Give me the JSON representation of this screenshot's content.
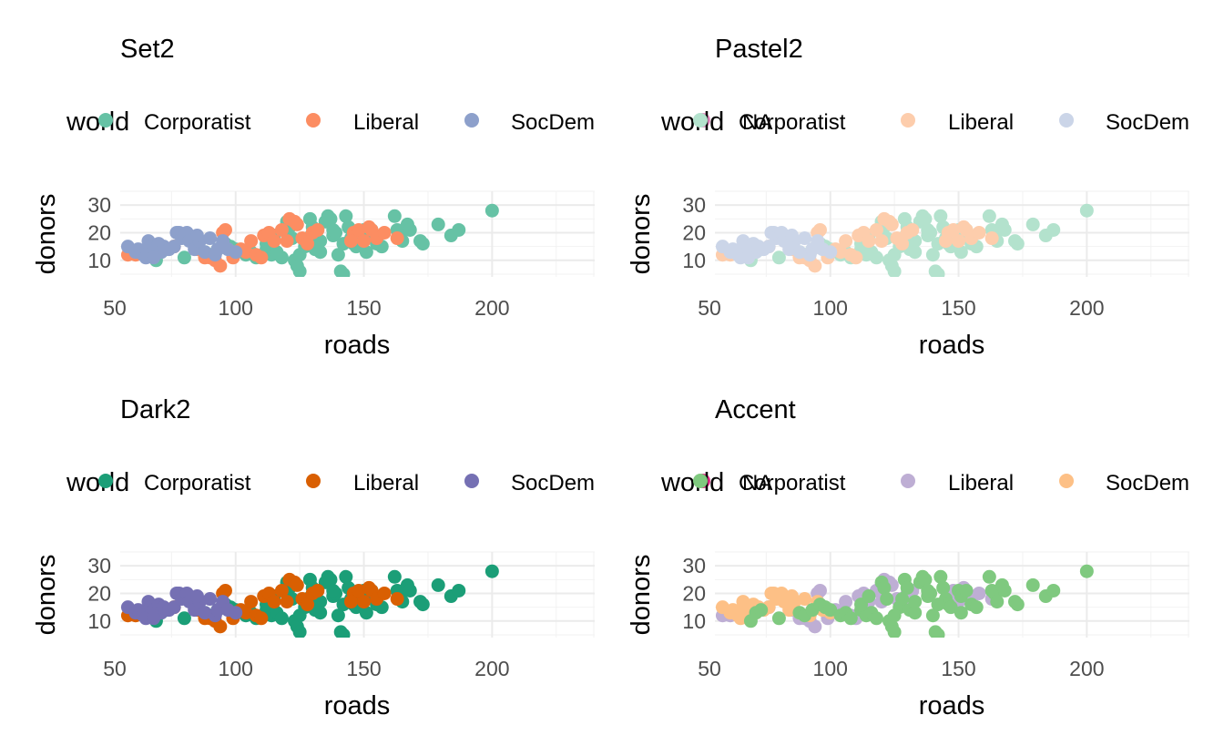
{
  "chart_data": [
    {
      "type": "scatter",
      "title": "Set2",
      "xlabel": "roads",
      "ylabel": "donors",
      "xlim": [
        55,
        240
      ],
      "ylim": [
        4,
        35
      ],
      "xticks": [
        50,
        100,
        150,
        200
      ],
      "yticks": [
        10,
        20,
        30
      ],
      "grid": true,
      "legend": {
        "title": "world",
        "placement": "top",
        "entries": [
          "Corporatist",
          "Liberal",
          "SocDem",
          "NA"
        ]
      },
      "colors": {
        "Corporatist": "#66c2a5",
        "Liberal": "#fc8d62",
        "SocDem": "#8da0cb",
        "NA": "#e78ac3"
      }
    },
    {
      "type": "scatter",
      "title": "Pastel2",
      "xlabel": "roads",
      "ylabel": "donors",
      "xlim": [
        55,
        240
      ],
      "ylim": [
        4,
        35
      ],
      "xticks": [
        50,
        100,
        150,
        200
      ],
      "yticks": [
        10,
        20,
        30
      ],
      "grid": true,
      "legend": {
        "title": "world",
        "placement": "top",
        "entries": [
          "Corporatist",
          "Liberal",
          "SocDem",
          "NA"
        ]
      },
      "colors": {
        "Corporatist": "#b3e2cd",
        "Liberal": "#fdcdac",
        "SocDem": "#cbd5e8",
        "NA": "#f4cae4"
      }
    },
    {
      "type": "scatter",
      "title": "Dark2",
      "xlabel": "roads",
      "ylabel": "donors",
      "xlim": [
        55,
        240
      ],
      "ylim": [
        4,
        35
      ],
      "xticks": [
        50,
        100,
        150,
        200
      ],
      "yticks": [
        10,
        20,
        30
      ],
      "grid": true,
      "legend": {
        "title": "world",
        "placement": "top",
        "entries": [
          "Corporatist",
          "Liberal",
          "SocDem",
          "NA"
        ]
      },
      "colors": {
        "Corporatist": "#1b9e77",
        "Liberal": "#d95f02",
        "SocDem": "#7570b3",
        "NA": "#e7298a"
      }
    },
    {
      "type": "scatter",
      "title": "Accent",
      "xlabel": "roads",
      "ylabel": "donors",
      "xlim": [
        55,
        240
      ],
      "ylim": [
        4,
        35
      ],
      "xticks": [
        50,
        100,
        150,
        200
      ],
      "yticks": [
        10,
        20,
        30
      ],
      "grid": true,
      "legend": {
        "title": "world",
        "placement": "top",
        "entries": [
          "Corporatist",
          "Liberal",
          "SocDem",
          "NA"
        ]
      },
      "colors": {
        "Corporatist": "#7fc97f",
        "Liberal": "#beaed4",
        "SocDem": "#fdc086",
        "NA": "#ffff99"
      }
    }
  ],
  "points": {
    "Corporatist": [
      [
        69,
        10
      ],
      [
        71,
        13
      ],
      [
        73,
        14
      ],
      [
        80,
        11
      ],
      [
        88,
        13
      ],
      [
        90,
        12
      ],
      [
        93,
        14
      ],
      [
        96,
        16
      ],
      [
        98,
        15
      ],
      [
        100,
        14
      ],
      [
        104,
        12
      ],
      [
        106,
        13
      ],
      [
        108,
        11
      ],
      [
        112,
        14
      ],
      [
        114,
        12
      ],
      [
        116,
        13
      ],
      [
        118,
        11
      ],
      [
        120,
        24
      ],
      [
        121,
        22
      ],
      [
        122,
        18
      ],
      [
        123,
        10
      ],
      [
        124,
        8
      ],
      [
        125,
        6
      ],
      [
        127,
        15
      ],
      [
        128,
        18
      ],
      [
        129,
        25
      ],
      [
        130,
        22
      ],
      [
        131,
        14
      ],
      [
        133,
        17
      ],
      [
        135,
        24
      ],
      [
        136,
        26
      ],
      [
        137,
        25
      ],
      [
        138,
        19
      ],
      [
        139,
        20
      ],
      [
        140,
        12
      ],
      [
        141,
        6
      ],
      [
        142,
        5
      ],
      [
        143,
        26
      ],
      [
        144,
        22
      ],
      [
        145,
        18
      ],
      [
        146,
        16
      ],
      [
        147,
        15
      ],
      [
        150,
        21
      ],
      [
        151,
        19
      ],
      [
        153,
        21
      ],
      [
        155,
        16
      ],
      [
        157,
        15
      ],
      [
        162,
        26
      ],
      [
        163,
        21
      ],
      [
        164,
        20
      ],
      [
        165,
        17
      ],
      [
        167,
        23
      ],
      [
        168,
        21
      ],
      [
        172,
        17
      ],
      [
        173,
        16
      ],
      [
        179,
        23
      ],
      [
        184,
        19
      ],
      [
        187,
        21
      ],
      [
        200,
        28
      ],
      [
        112,
        16
      ],
      [
        125,
        12
      ],
      [
        133,
        13
      ],
      [
        142,
        16
      ],
      [
        151,
        13
      ],
      [
        115,
        19
      ],
      [
        138,
        21
      ]
    ],
    "Liberal": [
      [
        58,
        12
      ],
      [
        61,
        12
      ],
      [
        63,
        13
      ],
      [
        66,
        13
      ],
      [
        69,
        13
      ],
      [
        76,
        15
      ],
      [
        85,
        14
      ],
      [
        88,
        11
      ],
      [
        90,
        11
      ],
      [
        92,
        10
      ],
      [
        94,
        8
      ],
      [
        95,
        20
      ],
      [
        96,
        21
      ],
      [
        99,
        11
      ],
      [
        102,
        14
      ],
      [
        104,
        13
      ],
      [
        106,
        17
      ],
      [
        108,
        12
      ],
      [
        110,
        11
      ],
      [
        111,
        19
      ],
      [
        113,
        20
      ],
      [
        115,
        17
      ],
      [
        118,
        21
      ],
      [
        120,
        17
      ],
      [
        121,
        25
      ],
      [
        123,
        24
      ],
      [
        124,
        23
      ],
      [
        126,
        18
      ],
      [
        128,
        16
      ],
      [
        130,
        20
      ],
      [
        132,
        21
      ],
      [
        146,
        20
      ],
      [
        148,
        21
      ],
      [
        150,
        17
      ],
      [
        152,
        22
      ],
      [
        153,
        21
      ],
      [
        155,
        18
      ],
      [
        158,
        20
      ],
      [
        163,
        18
      ],
      [
        145,
        17
      ]
    ],
    "SocDem": [
      [
        58,
        15
      ],
      [
        61,
        13
      ],
      [
        62,
        14
      ],
      [
        64,
        12
      ],
      [
        65,
        11
      ],
      [
        66,
        17
      ],
      [
        67,
        15
      ],
      [
        68,
        14
      ],
      [
        70,
        16
      ],
      [
        71,
        13
      ],
      [
        72,
        15
      ],
      [
        74,
        14
      ],
      [
        76,
        15
      ],
      [
        77,
        20
      ],
      [
        78,
        20
      ],
      [
        79,
        18
      ],
      [
        80,
        19
      ],
      [
        81,
        20
      ],
      [
        82,
        17
      ],
      [
        84,
        14
      ],
      [
        86,
        17
      ],
      [
        88,
        13
      ],
      [
        90,
        18
      ],
      [
        92,
        12
      ],
      [
        93,
        14
      ],
      [
        95,
        17
      ],
      [
        97,
        14
      ],
      [
        100,
        13
      ],
      [
        68,
        11
      ],
      [
        85,
        19
      ]
    ]
  }
}
